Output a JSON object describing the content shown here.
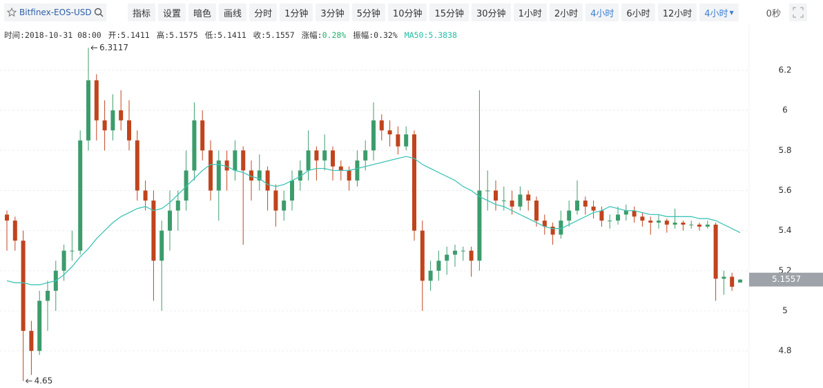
{
  "toolbar": {
    "symbol": "Bitfinex-EOS-USD",
    "tools": [
      "指标",
      "设置",
      "暗色",
      "画线"
    ],
    "periods": [
      "分时",
      "1分钟",
      "3分钟",
      "5分钟",
      "10分钟",
      "15分钟",
      "30分钟",
      "1小时",
      "2小时",
      "4小时",
      "6小时",
      "12小时"
    ],
    "active_period": 9,
    "period_menu": "4小时",
    "countdown": "0秒"
  },
  "info": [
    {
      "label": "时间:",
      "value": "2018-10-31 08:00"
    },
    {
      "label": "开:",
      "value": "5.1411"
    },
    {
      "label": "高:",
      "value": "5.1575"
    },
    {
      "label": "低:",
      "value": "5.1411"
    },
    {
      "label": "收:",
      "value": "5.1557"
    },
    {
      "label": "涨幅:",
      "value": "0.28%"
    },
    {
      "label": "振幅:",
      "value": "0.32%"
    },
    {
      "label": "MA50:",
      "value": "5.3838"
    }
  ],
  "chart_data": {
    "type": "candlestick",
    "up_color": "#3c9c6c",
    "down_color": "#c0441d",
    "ma_color": "#3cc4b6",
    "ylim": [
      4.615,
      6.406
    ],
    "yticks": [
      4.8,
      5,
      5.2,
      5.4,
      5.6,
      5.8,
      6,
      6.2
    ],
    "grid": true,
    "candles": [
      [
        5.48,
        5.5,
        5.3,
        5.45
      ],
      [
        5.45,
        5.47,
        5.3,
        5.35
      ],
      [
        5.35,
        5.4,
        4.65,
        4.9
      ],
      [
        4.9,
        4.95,
        4.68,
        4.8
      ],
      [
        4.8,
        5.1,
        4.78,
        5.05
      ],
      [
        5.05,
        5.15,
        4.9,
        5.1
      ],
      [
        5.1,
        5.25,
        5.0,
        5.2
      ],
      [
        5.2,
        5.33,
        5.15,
        5.3
      ],
      [
        5.3,
        5.4,
        5.25,
        5.3
      ],
      [
        5.3,
        5.9,
        5.28,
        5.85
      ],
      [
        5.85,
        6.3117,
        5.8,
        6.15
      ],
      [
        6.15,
        6.18,
        5.85,
        5.95
      ],
      [
        5.95,
        6.05,
        5.8,
        5.9
      ],
      [
        5.9,
        6.08,
        5.85,
        6.0
      ],
      [
        6.0,
        6.1,
        5.9,
        5.95
      ],
      [
        5.95,
        6.05,
        5.8,
        5.85
      ],
      [
        5.85,
        5.9,
        5.55,
        5.6
      ],
      [
        5.6,
        5.65,
        5.5,
        5.55
      ],
      [
        5.55,
        5.6,
        5.05,
        5.25
      ],
      [
        5.25,
        5.45,
        5.0,
        5.4
      ],
      [
        5.4,
        5.6,
        5.3,
        5.5
      ],
      [
        5.5,
        5.6,
        5.4,
        5.55
      ],
      [
        5.55,
        5.8,
        5.5,
        5.7
      ],
      [
        5.7,
        6.04,
        5.65,
        5.95
      ],
      [
        5.95,
        6.0,
        5.75,
        5.8
      ],
      [
        5.8,
        5.85,
        5.55,
        5.6
      ],
      [
        5.6,
        5.8,
        5.45,
        5.75
      ],
      [
        5.75,
        5.8,
        5.6,
        5.7
      ],
      [
        5.7,
        5.85,
        5.65,
        5.8
      ],
      [
        5.8,
        5.82,
        5.33,
        5.7
      ],
      [
        5.7,
        5.75,
        5.55,
        5.65
      ],
      [
        5.65,
        5.78,
        5.6,
        5.7
      ],
      [
        5.7,
        5.72,
        5.5,
        5.6
      ],
      [
        5.6,
        5.63,
        5.42,
        5.5
      ],
      [
        5.5,
        5.6,
        5.45,
        5.55
      ],
      [
        5.55,
        5.7,
        5.5,
        5.65
      ],
      [
        5.65,
        5.75,
        5.6,
        5.7
      ],
      [
        5.7,
        5.9,
        5.65,
        5.8
      ],
      [
        5.8,
        5.82,
        5.65,
        5.75
      ],
      [
        5.75,
        5.88,
        5.7,
        5.8
      ],
      [
        5.8,
        5.82,
        5.65,
        5.72
      ],
      [
        5.72,
        5.75,
        5.65,
        5.7
      ],
      [
        5.7,
        5.72,
        5.6,
        5.65
      ],
      [
        5.65,
        5.8,
        5.62,
        5.75
      ],
      [
        5.75,
        5.85,
        5.7,
        5.8
      ],
      [
        5.8,
        6.04,
        5.75,
        5.95
      ],
      [
        5.95,
        5.98,
        5.85,
        5.9
      ],
      [
        5.9,
        5.95,
        5.82,
        5.88
      ],
      [
        5.88,
        5.92,
        5.78,
        5.82
      ],
      [
        5.82,
        5.92,
        5.8,
        5.88
      ],
      [
        5.88,
        5.9,
        5.35,
        5.4
      ],
      [
        5.4,
        5.45,
        5.0,
        5.15
      ],
      [
        5.15,
        5.25,
        5.1,
        5.2
      ],
      [
        5.2,
        5.3,
        5.15,
        5.25
      ],
      [
        5.25,
        5.32,
        5.18,
        5.28
      ],
      [
        5.28,
        5.33,
        5.22,
        5.3
      ],
      [
        5.3,
        5.32,
        5.25,
        5.3
      ],
      [
        5.3,
        5.32,
        5.17,
        5.25
      ],
      [
        5.25,
        6.1,
        5.2,
        5.6
      ],
      [
        5.6,
        5.7,
        5.5,
        5.6
      ],
      [
        5.6,
        5.65,
        5.5,
        5.55
      ],
      [
        5.55,
        5.62,
        5.5,
        5.55
      ],
      [
        5.55,
        5.6,
        5.48,
        5.52
      ],
      [
        5.52,
        5.62,
        5.5,
        5.58
      ],
      [
        5.58,
        5.6,
        5.5,
        5.55
      ],
      [
        5.55,
        5.57,
        5.42,
        5.45
      ],
      [
        5.45,
        5.48,
        5.38,
        5.42
      ],
      [
        5.42,
        5.44,
        5.33,
        5.38
      ],
      [
        5.38,
        5.5,
        5.36,
        5.45
      ],
      [
        5.45,
        5.55,
        5.42,
        5.5
      ],
      [
        5.5,
        5.65,
        5.48,
        5.55
      ],
      [
        5.55,
        5.57,
        5.48,
        5.52
      ],
      [
        5.52,
        5.55,
        5.46,
        5.5
      ],
      [
        5.5,
        5.52,
        5.42,
        5.45
      ],
      [
        5.45,
        5.48,
        5.41,
        5.45
      ],
      [
        5.45,
        5.52,
        5.43,
        5.48
      ],
      [
        5.48,
        5.53,
        5.45,
        5.5
      ],
      [
        5.5,
        5.52,
        5.44,
        5.47
      ],
      [
        5.47,
        5.49,
        5.42,
        5.45
      ],
      [
        5.45,
        5.47,
        5.38,
        5.44
      ],
      [
        5.44,
        5.48,
        5.41,
        5.45
      ],
      [
        5.45,
        5.46,
        5.39,
        5.43
      ],
      [
        5.43,
        5.51,
        5.41,
        5.44
      ],
      [
        5.44,
        5.45,
        5.4,
        5.43
      ],
      [
        5.43,
        5.45,
        5.41,
        5.43
      ],
      [
        5.43,
        5.44,
        5.4,
        5.42
      ],
      [
        5.42,
        5.45,
        5.41,
        5.43
      ],
      [
        5.43,
        5.44,
        5.05,
        5.16
      ],
      [
        5.16,
        5.2,
        5.08,
        5.17
      ],
      [
        5.17,
        5.19,
        5.1,
        5.12
      ],
      [
        5.1411,
        5.1575,
        5.1411,
        5.1557
      ]
    ],
    "ma": [
      5.15,
      5.14,
      5.14,
      5.13,
      5.13,
      5.14,
      5.15,
      5.18,
      5.22,
      5.27,
      5.31,
      5.36,
      5.4,
      5.44,
      5.47,
      5.49,
      5.51,
      5.52,
      5.5,
      5.51,
      5.54,
      5.58,
      5.62,
      5.66,
      5.7,
      5.73,
      5.73,
      5.72,
      5.7,
      5.69,
      5.67,
      5.66,
      5.63,
      5.62,
      5.63,
      5.65,
      5.67,
      5.7,
      5.71,
      5.71,
      5.7,
      5.7,
      5.7,
      5.71,
      5.72,
      5.73,
      5.74,
      5.75,
      5.76,
      5.77,
      5.76,
      5.73,
      5.71,
      5.69,
      5.67,
      5.65,
      5.62,
      5.6,
      5.57,
      5.55,
      5.53,
      5.52,
      5.5,
      5.48,
      5.46,
      5.44,
      5.42,
      5.41,
      5.41,
      5.43,
      5.45,
      5.47,
      5.49,
      5.5,
      5.52,
      5.51,
      5.5,
      5.5,
      5.49,
      5.48,
      5.48,
      5.47,
      5.47,
      5.47,
      5.47,
      5.46,
      5.46,
      5.45,
      5.43,
      5.41,
      5.39
    ],
    "high_label": "6.3117",
    "low_label": "4.65",
    "last_price_label": "5.1557"
  }
}
